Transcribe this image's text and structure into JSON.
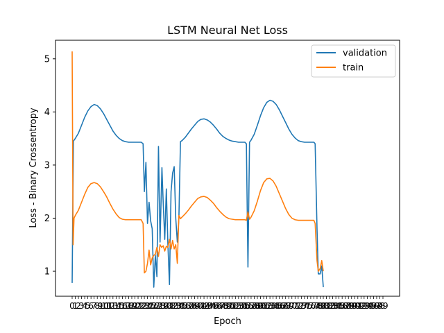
{
  "chart_data": {
    "type": "line",
    "title": "LSTM Neural Net Loss",
    "xlabel": "Epoch",
    "ylabel": "Loss - Binary Crossentropy",
    "x_range": [
      0,
      99
    ],
    "ylim": [
      0.53,
      5.35
    ],
    "y_ticks": [
      1,
      2,
      3,
      4,
      5
    ],
    "grid": false,
    "legend_position": "top-right",
    "series": [
      {
        "name": "validation",
        "color": "#1f77b4",
        "points": [
          [
            0,
            0.78
          ],
          [
            0.4,
            3.45
          ],
          [
            1,
            3.5
          ],
          [
            2,
            3.6
          ],
          [
            3,
            3.75
          ],
          [
            4,
            3.9
          ],
          [
            5,
            4.02
          ],
          [
            6,
            4.1
          ],
          [
            7,
            4.14
          ],
          [
            8,
            4.12
          ],
          [
            9,
            4.06
          ],
          [
            10,
            3.97
          ],
          [
            11,
            3.86
          ],
          [
            12,
            3.75
          ],
          [
            13,
            3.64
          ],
          [
            14,
            3.56
          ],
          [
            15,
            3.5
          ],
          [
            16,
            3.46
          ],
          [
            17,
            3.44
          ],
          [
            18,
            3.43
          ],
          [
            19,
            3.43
          ],
          [
            22,
            3.43
          ],
          [
            22.6,
            3.4
          ],
          [
            23,
            2.5
          ],
          [
            23.5,
            3.05
          ],
          [
            24,
            1.9
          ],
          [
            24.5,
            2.3
          ],
          [
            25,
            1.95
          ],
          [
            25.5,
            1.8
          ],
          [
            26,
            0.7
          ],
          [
            26.5,
            1.3
          ],
          [
            27,
            0.9
          ],
          [
            27.5,
            3.35
          ],
          [
            28,
            1.55
          ],
          [
            28.6,
            2.95
          ],
          [
            29,
            2.3
          ],
          [
            29.5,
            1.6
          ],
          [
            30,
            2.55
          ],
          [
            30.5,
            1.5
          ],
          [
            31,
            0.75
          ],
          [
            31.5,
            2.5
          ],
          [
            32,
            2.85
          ],
          [
            32.5,
            2.97
          ],
          [
            33,
            2.0
          ],
          [
            33.5,
            1.55
          ],
          [
            34,
            2.0
          ],
          [
            34.5,
            3.44
          ],
          [
            35,
            3.46
          ],
          [
            36,
            3.52
          ],
          [
            37,
            3.6
          ],
          [
            38,
            3.68
          ],
          [
            39,
            3.75
          ],
          [
            40,
            3.82
          ],
          [
            41,
            3.86
          ],
          [
            42,
            3.87
          ],
          [
            43,
            3.85
          ],
          [
            44,
            3.81
          ],
          [
            45,
            3.75
          ],
          [
            46,
            3.68
          ],
          [
            47,
            3.6
          ],
          [
            48,
            3.54
          ],
          [
            49,
            3.5
          ],
          [
            50,
            3.47
          ],
          [
            51,
            3.45
          ],
          [
            52,
            3.44
          ],
          [
            53,
            3.43
          ],
          [
            55,
            3.43
          ],
          [
            55.5,
            3.4
          ],
          [
            56,
            1.08
          ],
          [
            56.5,
            3.43
          ],
          [
            57,
            3.47
          ],
          [
            58,
            3.58
          ],
          [
            59,
            3.75
          ],
          [
            60,
            3.93
          ],
          [
            61,
            4.08
          ],
          [
            62,
            4.18
          ],
          [
            63,
            4.22
          ],
          [
            64,
            4.2
          ],
          [
            65,
            4.14
          ],
          [
            66,
            4.04
          ],
          [
            67,
            3.92
          ],
          [
            68,
            3.8
          ],
          [
            69,
            3.68
          ],
          [
            70,
            3.58
          ],
          [
            71,
            3.51
          ],
          [
            72,
            3.46
          ],
          [
            73,
            3.44
          ],
          [
            74,
            3.43
          ],
          [
            77,
            3.43
          ],
          [
            77.4,
            3.4
          ],
          [
            78,
            1.8
          ],
          [
            78.4,
            0.95
          ],
          [
            79,
            0.95
          ],
          [
            79.5,
            1.1
          ],
          [
            80,
            0.7
          ]
        ]
      },
      {
        "name": "train",
        "color": "#ff7f0e",
        "points": [
          [
            0,
            5.14
          ],
          [
            0.3,
            1.5
          ],
          [
            0.6,
            2.0
          ],
          [
            1,
            2.05
          ],
          [
            2,
            2.15
          ],
          [
            3,
            2.3
          ],
          [
            4,
            2.45
          ],
          [
            5,
            2.58
          ],
          [
            6,
            2.65
          ],
          [
            7,
            2.67
          ],
          [
            8,
            2.65
          ],
          [
            9,
            2.59
          ],
          [
            10,
            2.5
          ],
          [
            11,
            2.4
          ],
          [
            12,
            2.28
          ],
          [
            13,
            2.17
          ],
          [
            14,
            2.08
          ],
          [
            15,
            2.01
          ],
          [
            16,
            1.98
          ],
          [
            17,
            1.97
          ],
          [
            18,
            1.97
          ],
          [
            22,
            1.97
          ],
          [
            22.6,
            1.9
          ],
          [
            23,
            0.97
          ],
          [
            23.5,
            1.0
          ],
          [
            24,
            1.15
          ],
          [
            24.5,
            1.4
          ],
          [
            25,
            1.12
          ],
          [
            25.5,
            1.25
          ],
          [
            26,
            1.3
          ],
          [
            26.5,
            1.32
          ],
          [
            27,
            1.45
          ],
          [
            27.5,
            1.28
          ],
          [
            28,
            1.5
          ],
          [
            28.5,
            1.45
          ],
          [
            29,
            1.48
          ],
          [
            29.5,
            1.38
          ],
          [
            30,
            1.47
          ],
          [
            30.5,
            1.45
          ],
          [
            31,
            1.6
          ],
          [
            31.5,
            1.42
          ],
          [
            32,
            1.58
          ],
          [
            32.5,
            1.42
          ],
          [
            33,
            1.5
          ],
          [
            33.5,
            1.15
          ],
          [
            34,
            2.05
          ],
          [
            34.5,
            1.99
          ],
          [
            35,
            2.02
          ],
          [
            36,
            2.08
          ],
          [
            37,
            2.15
          ],
          [
            38,
            2.23
          ],
          [
            39,
            2.3
          ],
          [
            40,
            2.37
          ],
          [
            41,
            2.4
          ],
          [
            42,
            2.41
          ],
          [
            43,
            2.39
          ],
          [
            44,
            2.34
          ],
          [
            45,
            2.28
          ],
          [
            46,
            2.2
          ],
          [
            47,
            2.13
          ],
          [
            48,
            2.07
          ],
          [
            49,
            2.02
          ],
          [
            50,
            1.99
          ],
          [
            51,
            1.98
          ],
          [
            52,
            1.97
          ],
          [
            55,
            1.97
          ],
          [
            55.5,
            1.96
          ],
          [
            56,
            2.12
          ],
          [
            56.5,
            1.98
          ],
          [
            57,
            2.02
          ],
          [
            58,
            2.14
          ],
          [
            59,
            2.32
          ],
          [
            60,
            2.52
          ],
          [
            61,
            2.67
          ],
          [
            62,
            2.74
          ],
          [
            63,
            2.75
          ],
          [
            64,
            2.7
          ],
          [
            65,
            2.6
          ],
          [
            66,
            2.46
          ],
          [
            67,
            2.32
          ],
          [
            68,
            2.18
          ],
          [
            69,
            2.07
          ],
          [
            70,
            2.0
          ],
          [
            71,
            1.97
          ],
          [
            72,
            1.96
          ],
          [
            77,
            1.96
          ],
          [
            77.4,
            1.9
          ],
          [
            78,
            1.2
          ],
          [
            78.4,
            1.0
          ],
          [
            79,
            1.05
          ],
          [
            79.5,
            1.2
          ],
          [
            80,
            1.0
          ]
        ]
      }
    ]
  }
}
